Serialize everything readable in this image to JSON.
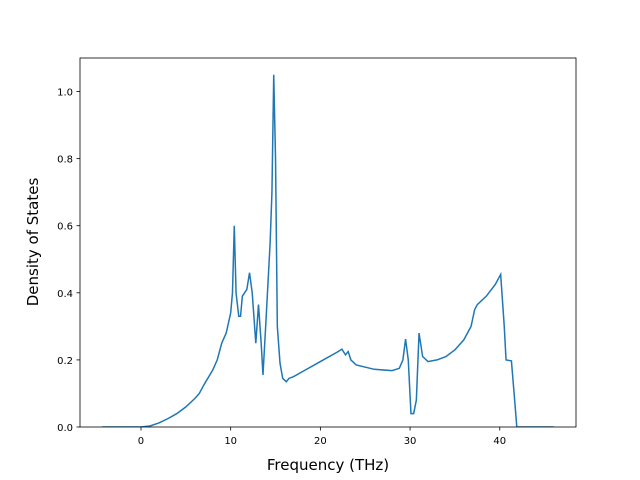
{
  "chart_data": {
    "type": "line",
    "xlabel": "Frequency (THz)",
    "ylabel": "Density of States",
    "x": [
      -4.3,
      0,
      1,
      2,
      3,
      4,
      5,
      6,
      6.5,
      7,
      8,
      8.5,
      9,
      9.5,
      10,
      10.2,
      10.4,
      10.6,
      10.9,
      11.1,
      11.3,
      11.8,
      12.1,
      12.4,
      12.8,
      13.1,
      13.4,
      13.6,
      13.9,
      14.4,
      14.6,
      14.8,
      15.0,
      15.2,
      15.5,
      15.8,
      16.2,
      16.5,
      17,
      18,
      20,
      22,
      22.4,
      22.8,
      23.1,
      23.4,
      24,
      26,
      28,
      28.8,
      29.2,
      29.5,
      29.8,
      30.1,
      30.4,
      30.7,
      31.0,
      31.4,
      32,
      33,
      34,
      35,
      36,
      36.8,
      37.2,
      37.5,
      38.5,
      39.5,
      40.1,
      40.5,
      40.7,
      41.3,
      41.6,
      41.9,
      46
    ],
    "series": [
      {
        "color": "#1f77b4",
        "values": [
          0,
          0,
          0.003,
          0.012,
          0.025,
          0.04,
          0.06,
          0.085,
          0.1,
          0.125,
          0.17,
          0.2,
          0.25,
          0.28,
          0.34,
          0.4,
          0.6,
          0.4,
          0.33,
          0.33,
          0.39,
          0.41,
          0.46,
          0.4,
          0.25,
          0.365,
          0.25,
          0.155,
          0.3,
          0.55,
          0.7,
          1.05,
          0.8,
          0.3,
          0.19,
          0.145,
          0.135,
          0.145,
          0.15,
          0.165,
          0.195,
          0.225,
          0.232,
          0.215,
          0.225,
          0.2,
          0.185,
          0.172,
          0.168,
          0.175,
          0.2,
          0.262,
          0.2,
          0.04,
          0.04,
          0.08,
          0.28,
          0.21,
          0.195,
          0.2,
          0.21,
          0.23,
          0.26,
          0.3,
          0.35,
          0.365,
          0.39,
          0.425,
          0.455,
          0.3,
          0.2,
          0.197,
          0.1,
          0,
          0
        ]
      }
    ],
    "xlim": [
      -6.8,
      48.5
    ],
    "xticks": [
      0,
      10,
      20,
      30,
      40
    ],
    "ylim": [
      0,
      1.1
    ],
    "yticks": [
      {
        "value": 0,
        "label": "0.0"
      },
      0.2,
      0.4,
      0.6,
      0.8,
      {
        "value": 1,
        "label": "1.0"
      }
    ]
  }
}
